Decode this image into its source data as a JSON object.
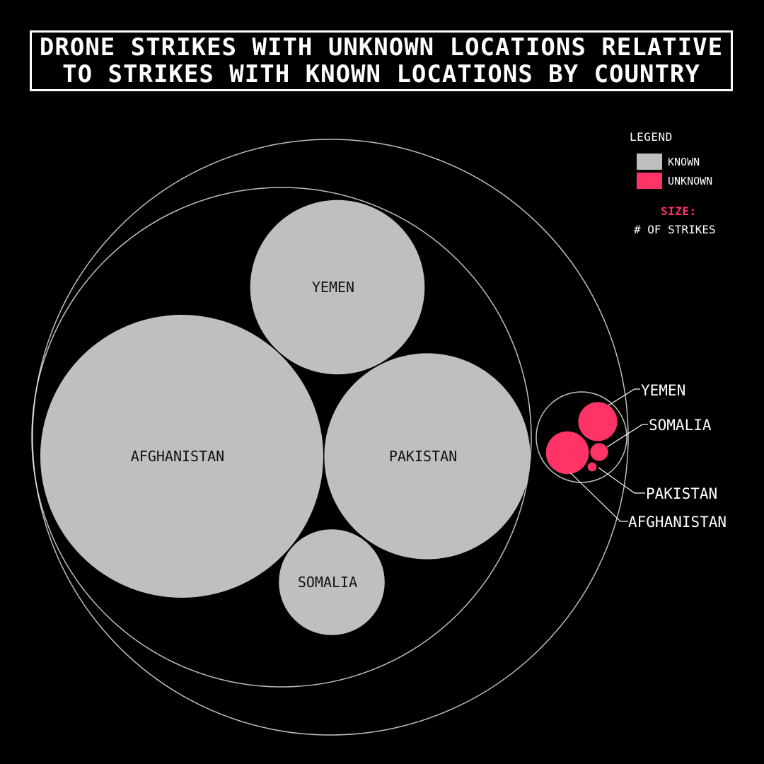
{
  "title_lines": [
    "DRONE STRIKES WITH UNKNOWN LOCATIONS RELATIVE",
    "TO STRIKES WITH KNOWN LOCATIONS BY COUNTRY"
  ],
  "legend": {
    "title": "LEGEND",
    "known_label": "KNOWN",
    "unknown_label": "UNKNOWN",
    "size_title": "SIZE:",
    "size_label": "# OF STRIKES"
  },
  "colors": {
    "known": "#bfbfbf",
    "unknown": "#ff3366",
    "outline": "#ffffff",
    "background": "#000000"
  },
  "chart_data": {
    "type": "packed-bubble",
    "title": "DRONE STRIKES WITH UNKNOWN LOCATIONS RELATIVE TO STRIKES WITH KNOWN LOCATIONS BY COUNTRY",
    "size_encoding": "# OF STRIKES",
    "series": [
      {
        "name": "KNOWN",
        "categories": [
          "AFGHANISTAN",
          "PAKISTAN",
          "YEMEN",
          "SOMALIA"
        ],
        "values": [
          100,
          53,
          38,
          14
        ]
      },
      {
        "name": "UNKNOWN",
        "categories": [
          "AFGHANISTAN",
          "PAKISTAN",
          "YEMEN",
          "SOMALIA"
        ],
        "values": [
          2.3,
          0.1,
          1.9,
          0.4
        ]
      }
    ],
    "annotations": [
      "AFGHANISTAN",
      "PAKISTAN",
      "YEMEN",
      "SOMALIA"
    ]
  }
}
